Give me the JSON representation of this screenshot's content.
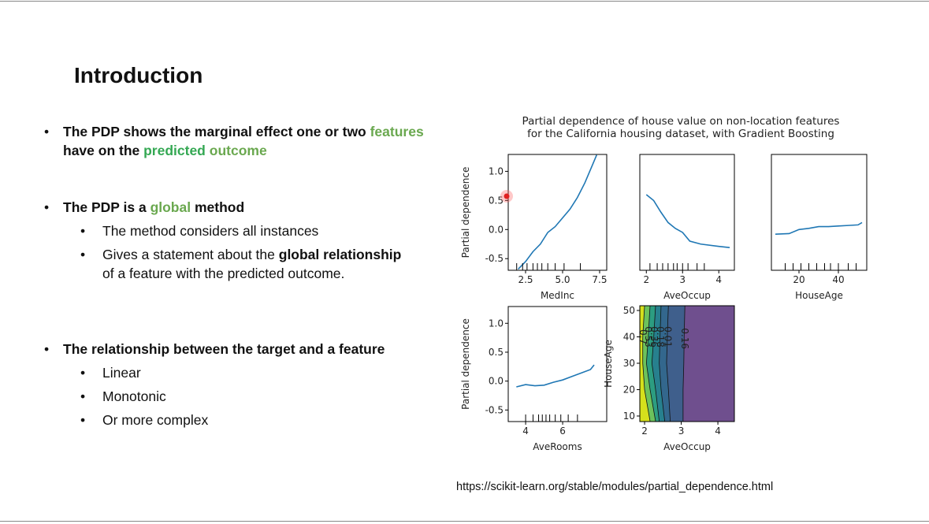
{
  "slide": {
    "title": "Introduction",
    "bullets": [
      {
        "runs": [
          {
            "text": "The PDP shows the marginal effect one or two ",
            "color": "#111111"
          },
          {
            "text": "features",
            "color": "#6aa84f"
          },
          {
            "text": " have on the ",
            "color": "#111111"
          },
          {
            "text": "predicted",
            "color": "#34a853"
          },
          {
            "text": " outcome",
            "color": "#6aa84f"
          }
        ],
        "sub": []
      },
      {
        "runs": [
          {
            "text": "The PDP is a ",
            "color": "#111111"
          },
          {
            "text": "global",
            "color": "#6aa84f"
          },
          {
            "text": " method",
            "color": "#111111"
          }
        ],
        "sub": [
          [
            {
              "text": "The method considers all instances",
              "bold": false
            }
          ],
          [
            {
              "text": "Gives a statement about the ",
              "bold": false
            },
            {
              "text": "global relationship",
              "bold": true
            },
            {
              "text": " of a feature with the predicted outcome.",
              "bold": false
            }
          ]
        ]
      },
      {
        "runs": [
          {
            "text": "The relationship between the target and a feature",
            "color": "#111111"
          }
        ],
        "sub": [
          [
            {
              "text": "Linear",
              "bold": false
            }
          ],
          [
            {
              "text": "Monotonic",
              "bold": false
            }
          ],
          [
            {
              "text": "Or more complex",
              "bold": false
            }
          ]
        ]
      }
    ],
    "source": "https://scikit-learn.org/stable/modules/partial_dependence.html"
  },
  "figure_title": [
    "Partial dependence of house value on non-location features",
    "for the California housing dataset, with Gradient Boosting"
  ],
  "chart_data": [
    {
      "type": "line",
      "xlabel": "MedInc",
      "ylabel": "Partial dependence",
      "color": "#1f77b4",
      "x": [
        2.0,
        2.5,
        3.0,
        3.5,
        4.0,
        4.5,
        5.0,
        5.5,
        6.0,
        6.5,
        7.0,
        7.3
      ],
      "values": [
        -0.68,
        -0.55,
        -0.38,
        -0.25,
        -0.05,
        0.05,
        0.2,
        0.35,
        0.55,
        0.8,
        1.1,
        1.28
      ],
      "deciles": [
        1.9,
        2.3,
        2.6,
        3.0,
        3.3,
        3.6,
        4.0,
        4.5,
        5.1,
        6.2
      ],
      "xlim": [
        1.33,
        7.98
      ],
      "ylim": [
        -0.7,
        1.29
      ],
      "xticks": [
        {
          "value": 2.5,
          "label": "2.5"
        },
        {
          "value": 5,
          "label": "5.0"
        },
        {
          "value": 7.5,
          "label": "7.5"
        }
      ],
      "yticks": [
        -0.5,
        {
          "value": 0,
          "label": "0.0"
        },
        0.5,
        {
          "value": 1,
          "label": "1.0"
        }
      ]
    },
    {
      "type": "line",
      "xlabel": "AveOccup",
      "color": "#1f77b4",
      "x": [
        2.0,
        2.2,
        2.4,
        2.6,
        2.8,
        3.0,
        3.2,
        3.5,
        4.0,
        4.3
      ],
      "values": [
        0.6,
        0.5,
        0.3,
        0.12,
        0.02,
        -0.05,
        -0.2,
        -0.25,
        -0.29,
        -0.31
      ],
      "deciles": [
        2.1,
        2.3,
        2.45,
        2.6,
        2.75,
        2.85,
        3.0,
        3.15,
        3.4,
        3.6
      ],
      "xlim": [
        1.82,
        4.43
      ],
      "ylim": [
        -0.7,
        1.29
      ],
      "xticks": [
        2,
        3,
        4
      ]
    },
    {
      "type": "line",
      "xlabel": "HouseAge",
      "color": "#1f77b4",
      "x": [
        8,
        15,
        20,
        25,
        30,
        35,
        40,
        45,
        50,
        52
      ],
      "values": [
        -0.08,
        -0.07,
        0.0,
        0.02,
        0.05,
        0.05,
        0.06,
        0.07,
        0.08,
        0.12
      ],
      "deciles": [
        13,
        17,
        21,
        25,
        29,
        33,
        36,
        40,
        45,
        49
      ],
      "xlim": [
        6,
        54.4
      ],
      "ylim": [
        -0.7,
        1.29
      ],
      "xticks": [
        20,
        40
      ]
    },
    {
      "type": "line",
      "xlabel": "AveRooms",
      "ylabel": "Partial dependence",
      "color": "#1f77b4",
      "x": [
        3.5,
        4.0,
        4.5,
        5.0,
        5.5,
        6.0,
        6.5,
        7.0,
        7.5,
        7.7
      ],
      "values": [
        -0.1,
        -0.06,
        -0.08,
        -0.07,
        -0.02,
        0.02,
        0.08,
        0.14,
        0.2,
        0.28
      ],
      "deciles": [
        4.0,
        4.4,
        4.7,
        4.9,
        5.1,
        5.3,
        5.6,
        5.9,
        6.3,
        6.8
      ],
      "xlim": [
        3.06,
        8.38
      ],
      "ylim": [
        -0.7,
        1.29
      ],
      "xticks": [
        4,
        6
      ],
      "yticks": [
        -0.5,
        {
          "value": 0,
          "label": "0.0"
        },
        0.5,
        {
          "value": 1,
          "label": "1.0"
        }
      ]
    },
    {
      "type": "contour",
      "xlabel": "AveOccup",
      "ylabel": "HouseAge",
      "y": [
        8,
        20,
        30,
        40,
        52
      ],
      "levels": [
        {
          "value": -0.16,
          "x": [
            3.05,
            3.05,
            3.07,
            3.08,
            3.1
          ]
        },
        {
          "value": 0.01,
          "x": [
            2.7,
            2.65,
            2.6,
            2.62,
            2.65
          ]
        },
        {
          "value": 0.18,
          "x": [
            2.55,
            2.45,
            2.4,
            2.42,
            2.45
          ]
        },
        {
          "value": 0.36,
          "x": [
            2.4,
            2.3,
            2.2,
            2.25,
            2.3
          ]
        },
        {
          "value": 0.53,
          "x": [
            2.3,
            2.15,
            2.05,
            2.1,
            2.15
          ]
        },
        {
          "value": 0.7,
          "x": [
            2.15,
            2.0,
            1.95,
            1.95,
            2.0
          ]
        }
      ],
      "fill_colors": [
        "#6f4f8e",
        "#3f5f8c",
        "#33678d",
        "#27808e",
        "#2c9d81",
        "#6cc25c",
        "#d6e01c"
      ],
      "xlim": [
        1.87,
        4.45
      ],
      "ylim": [
        7.9,
        51.8
      ],
      "xticks": [
        2,
        3,
        4
      ],
      "yticks": [
        10,
        20,
        30,
        40,
        50
      ]
    }
  ]
}
